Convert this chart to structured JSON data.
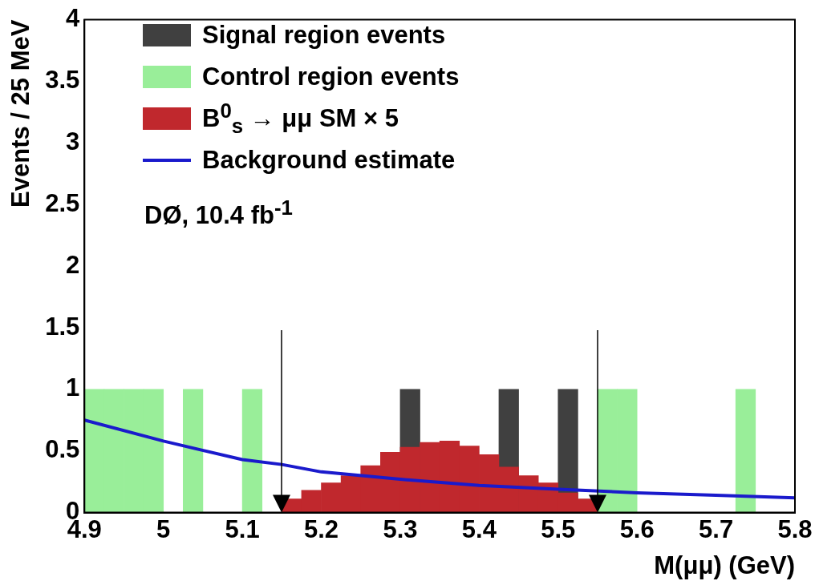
{
  "chart_data": {
    "type": "histogram",
    "xlabel": "M(μμ) (GeV)",
    "ylabel": "Events / 25 MeV",
    "bins": [
      4.9,
      4.925,
      4.95,
      4.975,
      5.0,
      5.025,
      5.05,
      5.075,
      5.1,
      5.125,
      5.15,
      5.175,
      5.2,
      5.225,
      5.25,
      5.275,
      5.3,
      5.325,
      5.35,
      5.375,
      5.4,
      5.425,
      5.45,
      5.475,
      5.5,
      5.525,
      5.55,
      5.575,
      5.6,
      5.625,
      5.65,
      5.675,
      5.7,
      5.725,
      5.75,
      5.775,
      5.8
    ],
    "series": [
      {
        "name": "Control region events",
        "color": "#99ee99",
        "values": [
          1,
          1,
          1,
          1,
          0,
          1,
          0,
          0,
          1,
          0,
          0,
          0,
          0,
          0,
          0,
          0,
          0,
          0,
          0,
          0,
          0,
          0,
          0,
          0,
          0,
          0,
          1,
          1,
          0,
          0,
          0,
          0,
          0,
          1,
          0,
          0
        ]
      },
      {
        "name": "B$^{0}$$_{s}$ → μμ SM × 5",
        "color": "#c0282d",
        "values": [
          0,
          0,
          0,
          0,
          0,
          0,
          0,
          0,
          0,
          0,
          0.11,
          0.18,
          0.24,
          0.3,
          0.38,
          0.49,
          0.53,
          0.57,
          0.58,
          0.54,
          0.47,
          0.37,
          0.3,
          0.24,
          0.16,
          0.11,
          0,
          0,
          0,
          0,
          0,
          0,
          0,
          0,
          0,
          0
        ]
      },
      {
        "name": "Signal region events",
        "color": "#404040",
        "values": [
          0,
          0,
          0,
          0,
          0,
          0,
          0,
          0,
          0,
          0,
          0,
          0,
          0,
          0,
          0,
          0,
          1,
          0,
          0,
          0,
          0,
          1,
          0,
          0,
          1,
          0,
          0,
          0,
          0,
          0,
          0,
          0,
          0,
          0,
          0,
          0
        ]
      },
      {
        "name": "Background estimate",
        "type": "line",
        "color": "#1a1acc",
        "x": [
          4.9,
          5.0,
          5.1,
          5.15,
          5.2,
          5.3,
          5.4,
          5.5,
          5.6,
          5.7,
          5.8
        ],
        "values": [
          0.75,
          0.58,
          0.43,
          0.39,
          0.33,
          0.27,
          0.22,
          0.19,
          0.16,
          0.14,
          0.12
        ]
      }
    ],
    "xlim": [
      4.9,
      5.8
    ],
    "xticks": [
      4.9,
      5,
      5.1,
      5.2,
      5.3,
      5.4,
      5.5,
      5.6,
      5.7,
      5.8
    ],
    "ylim": [
      0,
      4
    ],
    "yticks": [
      0,
      0.5,
      1,
      1.5,
      2,
      2.5,
      3,
      3.5,
      4
    ],
    "ref_lines": [
      {
        "axis": "x",
        "value": 5.15,
        "color": "#000000",
        "line_style": "solid"
      },
      {
        "axis": "x",
        "value": 5.55,
        "color": "#000000",
        "line_style": "solid"
      }
    ],
    "grid": false,
    "legend": "top left",
    "marker": "none",
    "annotations": [
      "DØ, 10.4 fb$^{-1}$"
    ]
  }
}
